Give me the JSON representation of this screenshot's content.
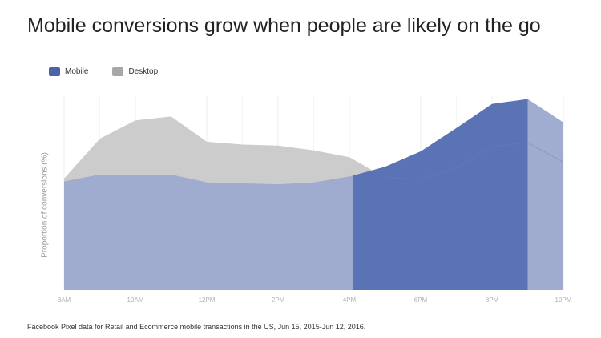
{
  "chart_data": {
    "type": "area",
    "title": "Mobile conversions grow when people are likely on the go",
    "ylabel": "Proportion of conversions (%)",
    "footnote": "Facebook Pixel data for Retail and Ecommerce mobile transactions in the US, Jun 15, 2015-Jun 12, 2016.",
    "x": [
      8,
      9,
      10,
      11,
      12,
      13,
      14,
      15,
      16,
      17,
      18,
      19,
      20,
      21,
      22
    ],
    "x_ticks": [
      {
        "x": 8,
        "label": "8AM"
      },
      {
        "x": 10,
        "label": "10AM"
      },
      {
        "x": 12,
        "label": "12PM"
      },
      {
        "x": 14,
        "label": "2PM"
      },
      {
        "x": 16,
        "label": "4PM"
      },
      {
        "x": 18,
        "label": "6PM"
      },
      {
        "x": 20,
        "label": "8PM"
      },
      {
        "x": 22,
        "label": "10PM"
      }
    ],
    "xlim": [
      8,
      22
    ],
    "ylim": [
      0,
      100
    ],
    "highlight_range": [
      16.1,
      21.0
    ],
    "series": [
      {
        "name": "Desktop",
        "color": "#cccccc",
        "values": [
          57.5,
          78,
          87.5,
          89.5,
          76.5,
          75,
          74.5,
          72,
          68.5,
          58,
          57,
          63,
          74,
          76,
          66
        ]
      },
      {
        "name": "Mobile",
        "color": "#9eabcf",
        "highlight_color": "#5a73b4",
        "values": [
          56,
          59.5,
          59.5,
          59.5,
          55.5,
          55,
          54.5,
          55.5,
          58.5,
          63.5,
          71.5,
          83.5,
          96,
          98.5,
          86.5
        ]
      }
    ],
    "legend": {
      "position": "top-left",
      "entries": [
        {
          "label": "Mobile",
          "color": "#4c63a8"
        },
        {
          "label": "Desktop",
          "color": "#a8a8a8"
        }
      ]
    },
    "grid": "vertical"
  }
}
